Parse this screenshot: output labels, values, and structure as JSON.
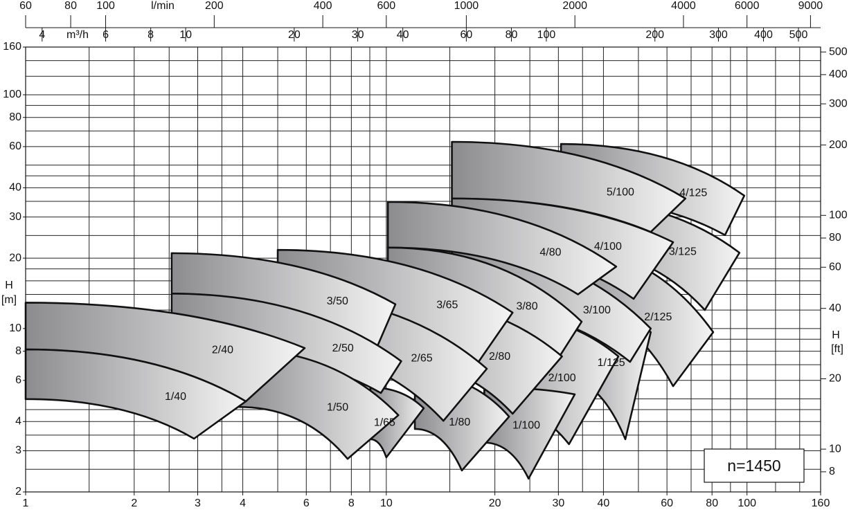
{
  "chart_data": {
    "type": "tiles",
    "ylabel": "H",
    "yunit": "[m]",
    "y2label": "H",
    "y2unit": "[ft]",
    "x2label": "m³/h",
    "x3label": "l/min",
    "speed": "n=1450",
    "xscale": "log",
    "yscale": "log",
    "grid": true,
    "xlim": [
      1,
      160
    ],
    "xticks": [
      1,
      2,
      3,
      4,
      6,
      8,
      10,
      20,
      30,
      40,
      60,
      80,
      100,
      160
    ],
    "xgrid": [
      1,
      1.5,
      2,
      2.5,
      3,
      3.5,
      4,
      5,
      6,
      7,
      8,
      9,
      10,
      15,
      20,
      25,
      30,
      35,
      40,
      50,
      60,
      70,
      80,
      90,
      100,
      120,
      140,
      160
    ],
    "ylim": [
      2,
      160
    ],
    "yticks": [
      2,
      3,
      4,
      6,
      8,
      10,
      20,
      30,
      40,
      60,
      80,
      100,
      160
    ],
    "ygrid": [
      2,
      2.5,
      3,
      3.5,
      4,
      4.5,
      5,
      6,
      7,
      8,
      9,
      10,
      12,
      14,
      16,
      18,
      20,
      25,
      30,
      35,
      40,
      45,
      50,
      60,
      70,
      80,
      90,
      100,
      120,
      140,
      160
    ],
    "x2lim": [
      3.6,
      576
    ],
    "x2ticks": [
      4,
      6,
      8,
      10,
      20,
      30,
      40,
      60,
      80,
      100,
      200,
      300,
      400,
      500
    ],
    "x3lim": [
      60,
      9600
    ],
    "x3ticks": [
      60,
      80,
      100,
      200,
      400,
      600,
      1000,
      2000,
      4000,
      6000,
      9000
    ],
    "y2lim": [
      6.56,
      524.9
    ],
    "y2ticks": [
      8,
      10,
      20,
      40,
      60,
      80,
      100,
      200,
      300,
      400,
      500
    ],
    "series": [
      {
        "name": "4/125",
        "x": [
          30.5,
          98.3,
          86.9,
          30.5
        ],
        "values": [
          61.6,
          37.0,
          25.1,
          36.0
        ]
      },
      {
        "name": "3/125",
        "x": [
          30.5,
          95.3,
          76.4,
          30.5
        ],
        "values": [
          36.0,
          21.1,
          12.0,
          22.3
        ]
      },
      {
        "name": "2/125",
        "x": [
          30.5,
          80.6,
          62.4,
          30.5
        ],
        "values": [
          22.3,
          9.65,
          5.67,
          12.7
        ]
      },
      {
        "name": "1/125",
        "x": [
          30.5,
          54.1,
          46.0,
          30.5
        ],
        "values": [
          12.7,
          9.65,
          3.36,
          6.2
        ]
      },
      {
        "name": "5/100",
        "x": [
          15.2,
          67.5,
          54.1,
          15.2
        ],
        "values": [
          62.9,
          36.0,
          25.9,
          36.0
        ]
      },
      {
        "name": "4/100",
        "x": [
          15.2,
          62.4,
          48.5,
          15.2
        ],
        "values": [
          36.0,
          23.4,
          13.4,
          22.2
        ]
      },
      {
        "name": "3/100",
        "x": [
          15.2,
          54.1,
          47.4,
          15.2
        ],
        "values": [
          22.2,
          10.0,
          7.2,
          12.7
        ]
      },
      {
        "name": "2/100",
        "x": [
          18.7,
          44.0,
          32.1,
          18.7
        ],
        "values": [
          11.8,
          7.6,
          3.2,
          4.88
        ]
      },
      {
        "name": "1/100",
        "x": [
          18.7,
          33.3,
          24.8,
          18.7
        ],
        "values": [
          5.6,
          5.23,
          2.28,
          3.25
        ]
      },
      {
        "name": "4/80",
        "x": [
          10.1,
          43.4,
          34.0,
          10.1
        ],
        "values": [
          34.8,
          18.4,
          14.0,
          22.2
        ]
      },
      {
        "name": "3/80",
        "x": [
          10.1,
          34.8,
          29.8,
          10.1
        ],
        "values": [
          22.2,
          10.7,
          7.35,
          13.6
        ]
      },
      {
        "name": "2/80",
        "x": [
          10.1,
          30.7,
          22.4,
          10.1
        ],
        "values": [
          13.6,
          7.6,
          4.32,
          7.35
        ]
      },
      {
        "name": "1/80",
        "x": [
          12.0,
          21.9,
          16.2,
          12.0
        ],
        "values": [
          6.41,
          4.2,
          2.47,
          3.72
        ]
      },
      {
        "name": "3/65",
        "x": [
          5.0,
          22.4,
          17.9,
          5.0
        ],
        "values": [
          21.7,
          11.7,
          7.1,
          13.8
        ]
      },
      {
        "name": "2/65",
        "x": [
          5.0,
          19.0,
          14.4,
          5.0
        ],
        "values": [
          13.8,
          6.73,
          4.03,
          8.14
        ]
      },
      {
        "name": "1/65",
        "x": [
          9.04,
          12.7,
          10.0,
          9.04
        ],
        "values": [
          5.6,
          4.56,
          2.81,
          3.36
        ]
      },
      {
        "name": "3/50",
        "x": [
          2.54,
          10.6,
          9.24,
          2.54
        ],
        "values": [
          21.0,
          12.7,
          7.76,
          14.1
        ]
      },
      {
        "name": "2/50",
        "x": [
          2.54,
          11.0,
          9.66,
          2.54
        ],
        "values": [
          14.1,
          7.25,
          5.3,
          8.42
        ]
      },
      {
        "name": "1/50",
        "x": [
          3.9,
          10.8,
          7.81,
          3.9
        ],
        "values": [
          8.14,
          4.26,
          2.77,
          4.62
        ]
      },
      {
        "name": "2/40",
        "x": [
          1,
          5.94,
          4.08,
          1
        ],
        "values": [
          12.9,
          8.25,
          4.88,
          8.14
        ]
      },
      {
        "name": "1/40",
        "x": [
          1,
          4.08,
          2.93,
          1
        ],
        "values": [
          8.14,
          4.88,
          3.38,
          4.99
        ]
      }
    ]
  }
}
